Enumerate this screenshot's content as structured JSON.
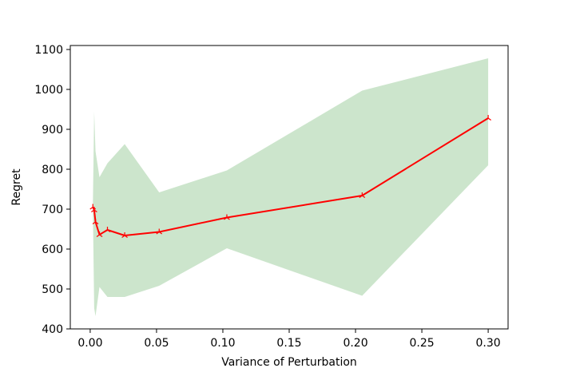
{
  "chart_data": {
    "type": "line",
    "xlabel": "Variance of Perturbation",
    "ylabel": "Regret",
    "xlim": [
      -0.015,
      0.315
    ],
    "ylim": [
      400,
      1110
    ],
    "x_ticks": [
      0.0,
      0.05,
      0.1,
      0.15,
      0.2,
      0.25,
      0.3
    ],
    "x_tick_labels": [
      "0.00",
      "0.05",
      "0.10",
      "0.15",
      "0.20",
      "0.25",
      "0.30"
    ],
    "y_ticks": [
      400,
      500,
      600,
      700,
      800,
      900,
      1000,
      1100
    ],
    "y_tick_labels": [
      "400",
      "500",
      "600",
      "700",
      "800",
      "900",
      "1000",
      "1100"
    ],
    "grid": false,
    "series": [
      {
        "x": [
          0.002,
          0.003,
          0.004,
          0.007,
          0.013,
          0.026,
          0.052,
          0.103,
          0.205,
          0.3
        ],
        "y": [
          705,
          698,
          668,
          636,
          648,
          634,
          643,
          679,
          734,
          928
        ],
        "upper": [
          705,
          945,
          845,
          780,
          815,
          863,
          742,
          797,
          997,
          1078
        ],
        "lower": [
          705,
          452,
          432,
          505,
          480,
          480,
          508,
          602,
          483,
          810
        ],
        "line_color": "#ff0000",
        "band_color": "#cce5cc"
      }
    ]
  }
}
